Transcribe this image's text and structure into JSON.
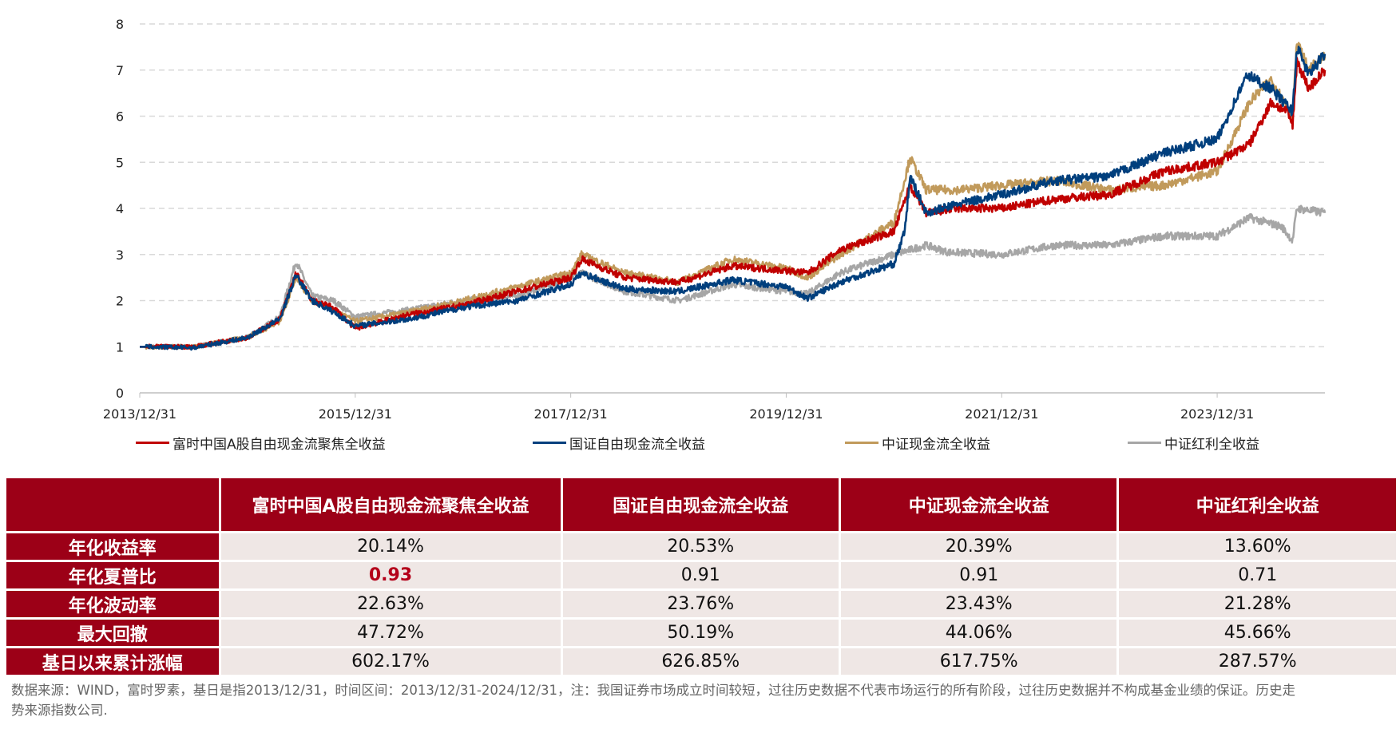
{
  "chart_data": {
    "type": "line",
    "title": "",
    "xlabel": "",
    "ylabel": "",
    "x_unit": "years since 2013/12/31",
    "xlim": [
      0,
      11
    ],
    "ylim": [
      0,
      8
    ],
    "yticks": [
      0,
      1,
      2,
      3,
      4,
      5,
      6,
      7,
      8
    ],
    "xtick_labels": [
      "2013/12/31",
      "2015/12/31",
      "2017/12/31",
      "2019/12/31",
      "2021/12/31",
      "2023/12/31"
    ],
    "xtick_values": [
      0,
      2,
      4,
      6,
      8,
      10
    ],
    "grid": "horizontal dashed",
    "legend_position": "bottom",
    "series": [
      {
        "name": "富时中国A股自由现金流聚焦全收益",
        "color": "#c00000",
        "points": [
          [
            0,
            1
          ],
          [
            0.5,
            1.0
          ],
          [
            1,
            1.2
          ],
          [
            1.3,
            1.6
          ],
          [
            1.45,
            2.6
          ],
          [
            1.6,
            2.0
          ],
          [
            1.8,
            1.85
          ],
          [
            1.95,
            1.5
          ],
          [
            2.0,
            1.4
          ],
          [
            2.5,
            1.7
          ],
          [
            3,
            1.9
          ],
          [
            3.5,
            2.2
          ],
          [
            4,
            2.5
          ],
          [
            4.1,
            2.9
          ],
          [
            4.5,
            2.5
          ],
          [
            5,
            2.4
          ],
          [
            5.5,
            2.75
          ],
          [
            6,
            2.65
          ],
          [
            6.2,
            2.6
          ],
          [
            6.5,
            3.1
          ],
          [
            7,
            3.5
          ],
          [
            7.15,
            4.5
          ],
          [
            7.3,
            3.9
          ],
          [
            7.6,
            4.0
          ],
          [
            8,
            4.0
          ],
          [
            8.5,
            4.2
          ],
          [
            9,
            4.3
          ],
          [
            9.5,
            4.8
          ],
          [
            10,
            5.0
          ],
          [
            10.3,
            5.4
          ],
          [
            10.5,
            6.3
          ],
          [
            10.65,
            6.1
          ],
          [
            10.7,
            5.8
          ],
          [
            10.74,
            7.2
          ],
          [
            10.85,
            6.6
          ],
          [
            11,
            7.0
          ]
        ]
      },
      {
        "name": "国证自由现金流全收益",
        "color": "#003f7d",
        "points": [
          [
            0,
            1
          ],
          [
            0.5,
            0.98
          ],
          [
            1,
            1.2
          ],
          [
            1.3,
            1.6
          ],
          [
            1.45,
            2.55
          ],
          [
            1.6,
            2.0
          ],
          [
            1.8,
            1.75
          ],
          [
            2.0,
            1.45
          ],
          [
            2.5,
            1.6
          ],
          [
            3,
            1.85
          ],
          [
            3.5,
            2.0
          ],
          [
            4,
            2.35
          ],
          [
            4.1,
            2.6
          ],
          [
            4.5,
            2.25
          ],
          [
            5,
            2.2
          ],
          [
            5.5,
            2.45
          ],
          [
            6,
            2.3
          ],
          [
            6.2,
            2.05
          ],
          [
            6.5,
            2.4
          ],
          [
            7,
            2.8
          ],
          [
            7.1,
            3.5
          ],
          [
            7.15,
            4.7
          ],
          [
            7.3,
            3.9
          ],
          [
            7.6,
            4.1
          ],
          [
            8,
            4.3
          ],
          [
            8.5,
            4.6
          ],
          [
            9,
            4.7
          ],
          [
            9.5,
            5.2
          ],
          [
            10,
            5.5
          ],
          [
            10.28,
            6.9
          ],
          [
            10.5,
            6.6
          ],
          [
            10.7,
            6.1
          ],
          [
            10.74,
            7.5
          ],
          [
            10.85,
            6.9
          ],
          [
            11,
            7.35
          ]
        ]
      },
      {
        "name": "中证现金流全收益",
        "color": "#c19a5b",
        "points": [
          [
            0,
            1
          ],
          [
            0.5,
            1.0
          ],
          [
            1,
            1.2
          ],
          [
            1.3,
            1.55
          ],
          [
            1.45,
            2.5
          ],
          [
            1.6,
            2.0
          ],
          [
            1.8,
            1.8
          ],
          [
            2.0,
            1.55
          ],
          [
            2.5,
            1.75
          ],
          [
            3,
            2.0
          ],
          [
            3.5,
            2.3
          ],
          [
            4,
            2.6
          ],
          [
            4.1,
            3.0
          ],
          [
            4.5,
            2.6
          ],
          [
            5,
            2.4
          ],
          [
            5.5,
            2.9
          ],
          [
            6,
            2.7
          ],
          [
            6.2,
            2.5
          ],
          [
            6.5,
            3.0
          ],
          [
            7,
            3.7
          ],
          [
            7.15,
            5.1
          ],
          [
            7.3,
            4.4
          ],
          [
            7.6,
            4.4
          ],
          [
            8,
            4.5
          ],
          [
            8.5,
            4.6
          ],
          [
            9,
            4.4
          ],
          [
            9.5,
            4.5
          ],
          [
            10,
            4.8
          ],
          [
            10.3,
            6.3
          ],
          [
            10.5,
            6.8
          ],
          [
            10.7,
            6.0
          ],
          [
            10.74,
            7.6
          ],
          [
            10.85,
            7.0
          ],
          [
            11,
            7.3
          ]
        ]
      },
      {
        "name": "中证红利全收益",
        "color": "#a6a6a6",
        "points": [
          [
            0,
            1
          ],
          [
            0.5,
            1.0
          ],
          [
            1,
            1.2
          ],
          [
            1.3,
            1.65
          ],
          [
            1.45,
            2.85
          ],
          [
            1.6,
            2.1
          ],
          [
            1.8,
            2.0
          ],
          [
            2.0,
            1.65
          ],
          [
            2.5,
            1.8
          ],
          [
            3,
            2.0
          ],
          [
            3.5,
            2.1
          ],
          [
            4,
            2.5
          ],
          [
            4.1,
            2.6
          ],
          [
            4.5,
            2.2
          ],
          [
            5,
            2.0
          ],
          [
            5.5,
            2.35
          ],
          [
            6,
            2.2
          ],
          [
            6.2,
            2.15
          ],
          [
            6.5,
            2.6
          ],
          [
            7,
            3.0
          ],
          [
            7.3,
            3.2
          ],
          [
            7.5,
            3.05
          ],
          [
            8,
            3.0
          ],
          [
            8.5,
            3.2
          ],
          [
            9,
            3.2
          ],
          [
            9.5,
            3.4
          ],
          [
            10,
            3.4
          ],
          [
            10.3,
            3.8
          ],
          [
            10.6,
            3.6
          ],
          [
            10.7,
            3.3
          ],
          [
            10.74,
            4.0
          ],
          [
            11,
            3.9
          ]
        ]
      }
    ]
  },
  "table": {
    "headers": [
      "",
      "富时中国A股自由现金流聚焦全收益",
      "国证自由现金流全收益",
      "中证现金流全收益",
      "中证红利全收益"
    ],
    "rows": [
      [
        "年化收益率",
        "20.14%",
        "20.53%",
        "20.39%",
        "13.60%"
      ],
      [
        "年化夏普比",
        "0.93",
        "0.91",
        "0.91",
        "0.71"
      ],
      [
        "年化波动率",
        "22.63%",
        "23.76%",
        "23.43%",
        "21.28%"
      ],
      [
        "最大回撤",
        "47.72%",
        "50.19%",
        "44.06%",
        "45.66%"
      ],
      [
        "基日以来累计涨幅",
        "602.17%",
        "626.85%",
        "617.75%",
        "287.57%"
      ]
    ]
  },
  "footnote": "数据来源：WIND，富时罗素，基日是指2013/12/31，时间区间：2013/12/31-2024/12/31，注：我国证券市场成立时间较短，过往历史数据不代表市场运行的所有阶段，过往历史数据并不构成基金业绩的保证。历史走势来源指数公司."
}
